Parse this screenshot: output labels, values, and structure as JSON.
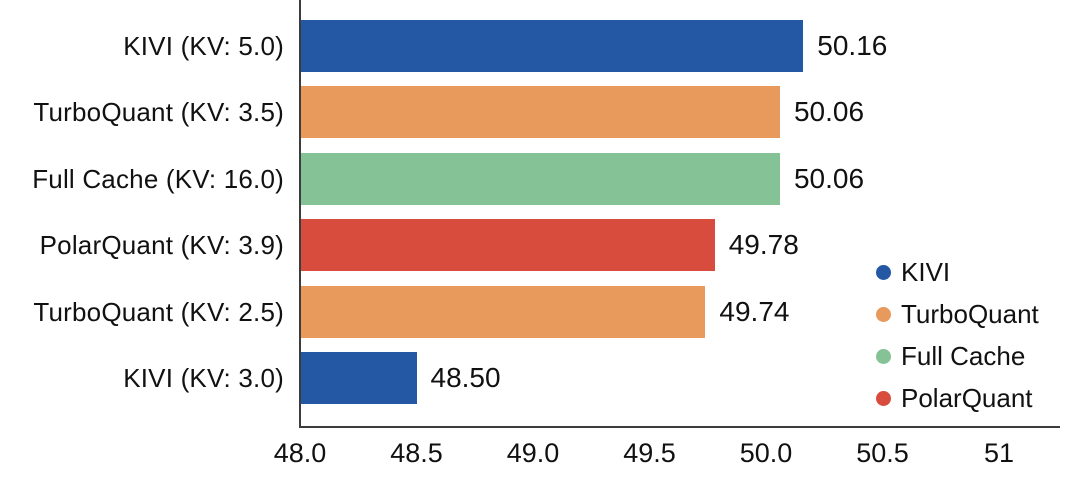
{
  "chart_data": {
    "type": "bar",
    "orientation": "horizontal",
    "title": "",
    "xlabel": "",
    "ylabel": "",
    "categories": [
      "KIVI (KV: 5.0)",
      "TurboQuant (KV: 3.5)",
      "Full Cache (KV: 16.0)",
      "PolarQuant (KV: 3.9)",
      "TurboQuant (KV: 2.5)",
      "KIVI (KV: 3.0)"
    ],
    "values": [
      50.16,
      50.06,
      50.06,
      49.78,
      49.74,
      48.5
    ],
    "value_labels": [
      "50.16",
      "50.06",
      "50.06",
      "49.78",
      "49.74",
      "48.50"
    ],
    "bar_series": [
      "KIVI",
      "TurboQuant",
      "Full Cache",
      "PolarQuant",
      "TurboQuant",
      "KIVI"
    ],
    "bar_colors": [
      "#2458A4",
      "#E89A5D",
      "#85C295",
      "#D84C3E",
      "#E89A5D",
      "#2458A4"
    ],
    "xlim": [
      48,
      51.25
    ],
    "x_tick_values": [
      48.0,
      48.5,
      49.0,
      49.5,
      50.0,
      50.5,
      51.0
    ],
    "x_tick_labels": [
      "48.0",
      "48.5",
      "49.0",
      "49.5",
      "50.0",
      "50.5",
      "51"
    ],
    "grid": false,
    "legend_position": "right-lower",
    "legend": [
      {
        "label": "KIVI",
        "color": "#2458A4"
      },
      {
        "label": "TurboQuant",
        "color": "#E89A5D"
      },
      {
        "label": "Full Cache",
        "color": "#85C295"
      },
      {
        "label": "PolarQuant",
        "color": "#D84C3E"
      }
    ],
    "colors": {
      "axis_line": "#3c3c3c",
      "text": "#111111",
      "background": "#ffffff"
    }
  }
}
